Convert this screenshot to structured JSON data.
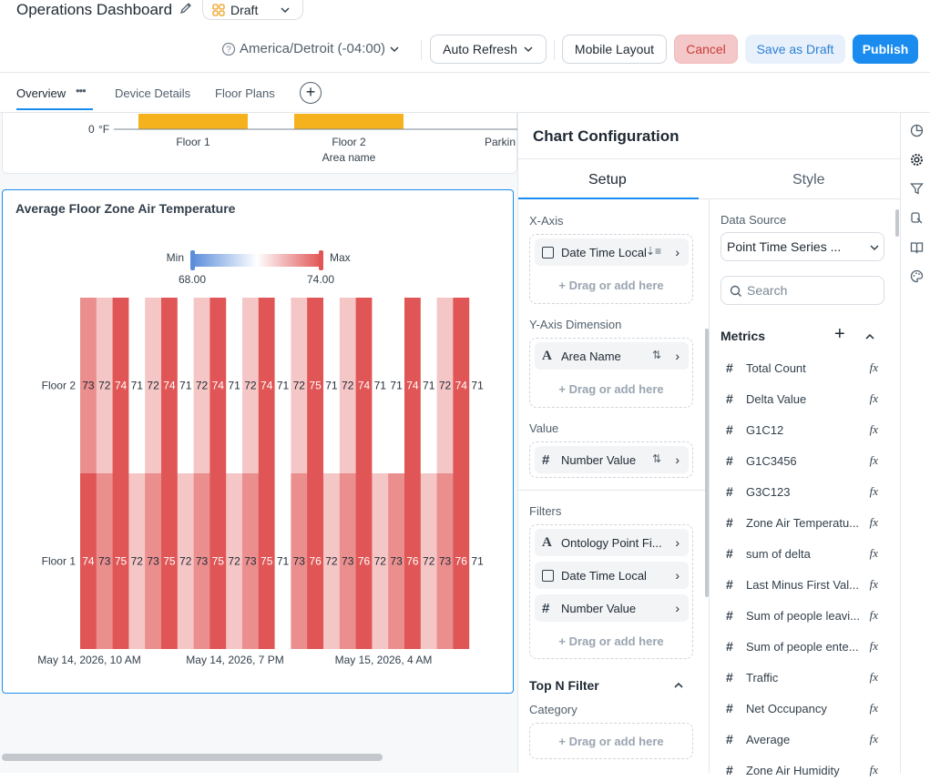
{
  "header": {
    "title": "Operations Dashboard",
    "status": "Draft",
    "timezone": "America/Detroit (-04:00)",
    "auto_refresh": "Auto Refresh",
    "mobile_layout": "Mobile Layout",
    "cancel": "Cancel",
    "save_draft": "Save as Draft",
    "publish": "Publish"
  },
  "tabs": [
    {
      "label": "Overview",
      "active": true
    },
    {
      "label": "Device Details",
      "active": false
    },
    {
      "label": "Floor Plans",
      "active": false
    }
  ],
  "top_chart": {
    "y_tick": "0",
    "y_unit": "°F",
    "categories": [
      "Floor 1",
      "Floor 2",
      "Parkin"
    ],
    "x_axis_label": "Area name"
  },
  "heatmap_card": {
    "title": "Average Floor Zone Air Temperature",
    "legend_min_label": "Min",
    "legend_max_label": "Max",
    "legend_min_value": "68.00",
    "legend_max_value": "74.00"
  },
  "chart_data": {
    "type": "heatmap",
    "title": "Average Floor Zone Air Temperature",
    "rows": [
      "Floor 2",
      "Floor 1"
    ],
    "x_tick_labels": [
      "May 14, 2026, 10 AM",
      "May 14, 2026, 7 PM",
      "May 15, 2026, 4 AM"
    ],
    "values": [
      [
        73,
        72,
        74,
        71,
        72,
        74,
        71,
        72,
        74,
        71,
        72,
        74,
        71,
        72,
        75,
        71,
        72,
        74,
        71,
        71,
        74,
        71,
        72,
        74,
        71
      ],
      [
        74,
        73,
        75,
        72,
        73,
        75,
        72,
        73,
        75,
        72,
        73,
        75,
        71,
        73,
        76,
        72,
        73,
        76,
        72,
        73,
        76,
        72,
        73,
        76,
        71
      ]
    ],
    "color_range": [
      68.0,
      74.0
    ],
    "colors": {
      "min": "#5b8ddb",
      "mid": "#ffffff",
      "max": "#e05555"
    }
  },
  "config": {
    "title": "Chart Configuration",
    "tab_setup": "Setup",
    "tab_style": "Style",
    "x_axis_label": "X-Axis",
    "x_axis_field": "Date Time Local",
    "y_axis_label": "Y-Axis Dimension",
    "y_axis_field": "Area Name",
    "value_label": "Value",
    "value_field": "Number Value",
    "filters_label": "Filters",
    "filters": [
      "Ontology Point Fi...",
      "Date Time Local",
      "Number Value"
    ],
    "add_here": "+ Drag or add here",
    "topn_label": "Top N Filter",
    "category_label": "Category",
    "data_source_label": "Data Source",
    "data_source_value": "Point Time Series ...",
    "search_placeholder": "Search",
    "metrics_label": "Metrics",
    "metrics": [
      "Total Count",
      "Delta Value",
      "G1C12",
      "G1C3456",
      "G3C123",
      "Zone Air Temperatu...",
      "sum of delta",
      "Last Minus First Val...",
      "Sum of people leavi...",
      "Sum of people ente...",
      "Traffic",
      "Net Occupancy",
      "Average",
      "Zone Air Humidity"
    ],
    "fx": "fx"
  }
}
